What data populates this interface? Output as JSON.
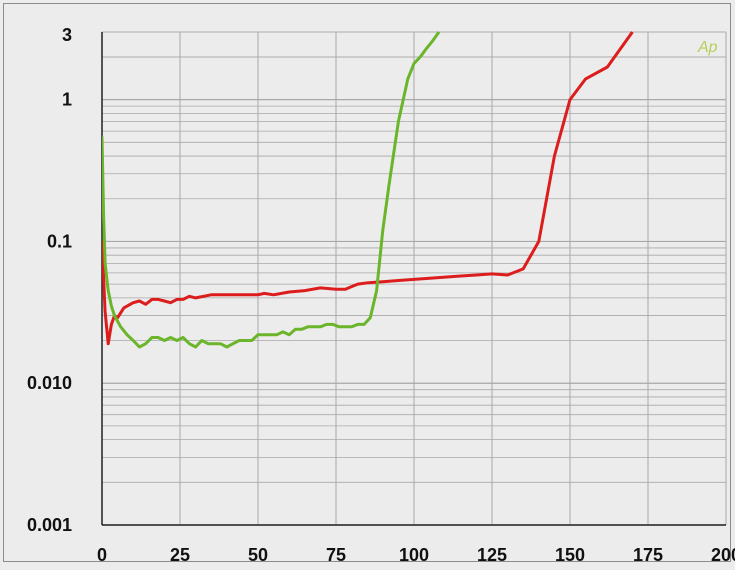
{
  "chart_data": {
    "type": "line",
    "title": "",
    "xlabel": "",
    "ylabel": "",
    "x_scale": "linear",
    "y_scale": "log",
    "xlim": [
      0,
      200
    ],
    "ylim": [
      0.001,
      3
    ],
    "grid": true,
    "x_ticks": [
      0,
      25,
      50,
      75,
      100,
      125,
      150,
      175,
      200
    ],
    "x_tick_labels": [
      "0",
      "25",
      "50",
      "75",
      "100",
      "125",
      "150",
      "175",
      "200"
    ],
    "y_ticks": [
      0.001,
      0.01,
      0.1,
      1,
      3
    ],
    "y_tick_labels": [
      "0.001",
      "0.010",
      "0.1",
      "1",
      "3"
    ],
    "watermark": "Ap",
    "colors": {
      "background": "#ececec",
      "grid": "#a8a8a8",
      "axis": "#222222",
      "red": "#dd1c1c",
      "green": "#6ab52a"
    },
    "series": [
      {
        "color": "#dd1c1c",
        "x": [
          0,
          1,
          2,
          3,
          4,
          5,
          7,
          10,
          12,
          14,
          16,
          18,
          20,
          22,
          24,
          26,
          28,
          30,
          35,
          40,
          45,
          50,
          52,
          55,
          60,
          65,
          70,
          75,
          78,
          80,
          82,
          85,
          90,
          95,
          100,
          105,
          110,
          115,
          120,
          125,
          130,
          135,
          140,
          145,
          150,
          155,
          162,
          170
        ],
        "y": [
          0.1,
          0.032,
          0.019,
          0.026,
          0.03,
          0.029,
          0.034,
          0.037,
          0.038,
          0.036,
          0.039,
          0.039,
          0.038,
          0.037,
          0.039,
          0.039,
          0.041,
          0.04,
          0.042,
          0.042,
          0.042,
          0.042,
          0.043,
          0.042,
          0.044,
          0.045,
          0.047,
          0.046,
          0.046,
          0.048,
          0.05,
          0.051,
          0.052,
          0.053,
          0.054,
          0.055,
          0.056,
          0.057,
          0.058,
          0.059,
          0.058,
          0.064,
          0.1,
          0.4,
          1.0,
          1.4,
          1.7,
          3.0
        ]
      },
      {
        "color": "#6ab52a",
        "x": [
          0,
          0.5,
          1,
          2,
          3,
          4,
          6,
          8,
          10,
          12,
          14,
          16,
          18,
          20,
          22,
          24,
          26,
          28,
          30,
          32,
          34,
          36,
          38,
          40,
          42,
          44,
          46,
          48,
          50,
          52,
          54,
          56,
          58,
          60,
          62,
          64,
          66,
          68,
          70,
          72,
          74,
          76,
          78,
          80,
          82,
          84,
          86,
          88,
          90,
          92,
          95,
          98,
          100,
          102,
          104,
          106,
          108
        ],
        "y": [
          0.55,
          0.15,
          0.07,
          0.045,
          0.035,
          0.03,
          0.025,
          0.022,
          0.02,
          0.018,
          0.019,
          0.021,
          0.021,
          0.02,
          0.021,
          0.02,
          0.021,
          0.019,
          0.018,
          0.02,
          0.019,
          0.019,
          0.019,
          0.018,
          0.019,
          0.02,
          0.02,
          0.02,
          0.022,
          0.022,
          0.022,
          0.022,
          0.023,
          0.022,
          0.024,
          0.024,
          0.025,
          0.025,
          0.025,
          0.026,
          0.026,
          0.025,
          0.025,
          0.025,
          0.026,
          0.026,
          0.029,
          0.045,
          0.12,
          0.25,
          0.7,
          1.4,
          1.8,
          2.0,
          2.3,
          2.6,
          3.0
        ]
      }
    ]
  }
}
